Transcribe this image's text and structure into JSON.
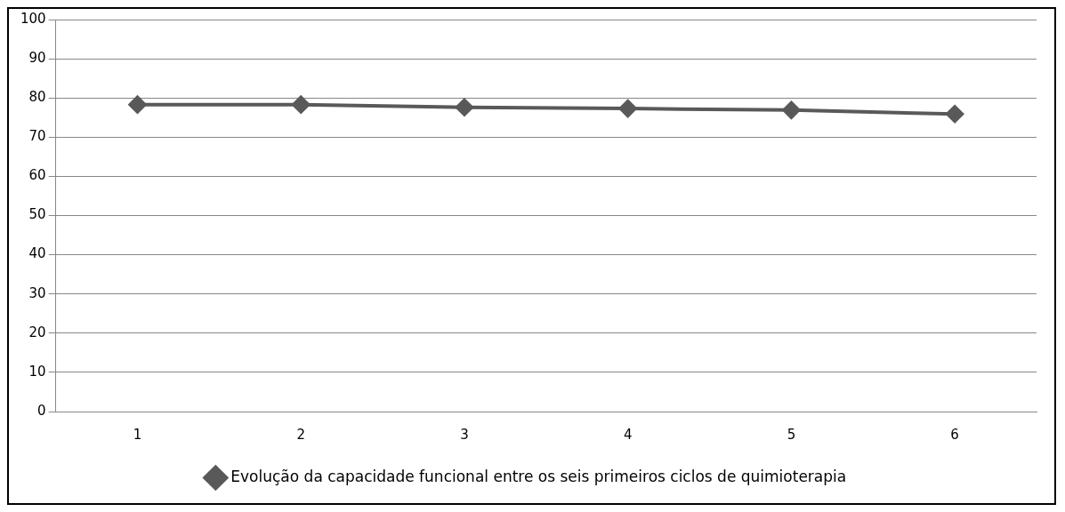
{
  "chart_data": {
    "type": "line",
    "categories": [
      "1",
      "2",
      "3",
      "4",
      "5",
      "6"
    ],
    "series": [
      {
        "name": "Evolução da capacidade funcional entre os seis primeiros ciclos de quimioterapia",
        "color": "#595959",
        "values": [
          78.3,
          78.3,
          77.6,
          77.3,
          76.9,
          75.9
        ]
      }
    ],
    "ylim": [
      0,
      100
    ],
    "yticks": [
      0,
      10,
      20,
      30,
      40,
      50,
      60,
      70,
      80,
      90,
      100
    ],
    "grid": "y",
    "legend": "bottom",
    "marker": "diamond",
    "line_style": "solid"
  }
}
